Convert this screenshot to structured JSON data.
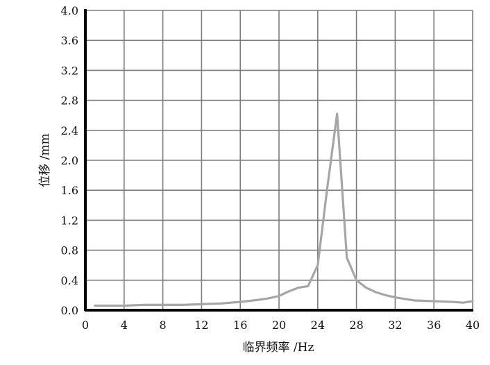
{
  "chart_data": {
    "type": "line",
    "title": "",
    "xlabel": "临界频率 /Hz",
    "ylabel": "位移 /mm",
    "xlim": [
      0,
      40
    ],
    "ylim": [
      0,
      4.0
    ],
    "grid": true,
    "legend": "none",
    "x_ticks": [
      "0",
      "4",
      "8",
      "12",
      "16",
      "20",
      "24",
      "28",
      "32",
      "36",
      "40"
    ],
    "y_ticks": [
      "0.0",
      "0.4",
      "0.8",
      "1.2",
      "1.6",
      "2.0",
      "2.4",
      "2.8",
      "3.2",
      "3.6",
      "4.0"
    ],
    "series": [
      {
        "color": "#a6a6a6",
        "x": [
          1,
          4,
          6,
          8,
          10,
          12,
          14,
          16,
          18,
          19,
          20,
          21,
          22,
          23,
          24,
          25,
          26,
          27,
          28,
          29,
          30,
          31,
          32,
          33,
          34,
          36,
          38,
          39,
          40
        ],
        "y": [
          0.06,
          0.06,
          0.07,
          0.07,
          0.07,
          0.08,
          0.09,
          0.11,
          0.14,
          0.16,
          0.19,
          0.25,
          0.3,
          0.32,
          0.6,
          1.65,
          2.62,
          0.7,
          0.4,
          0.3,
          0.24,
          0.2,
          0.17,
          0.15,
          0.13,
          0.12,
          0.11,
          0.1,
          0.12
        ]
      }
    ]
  }
}
